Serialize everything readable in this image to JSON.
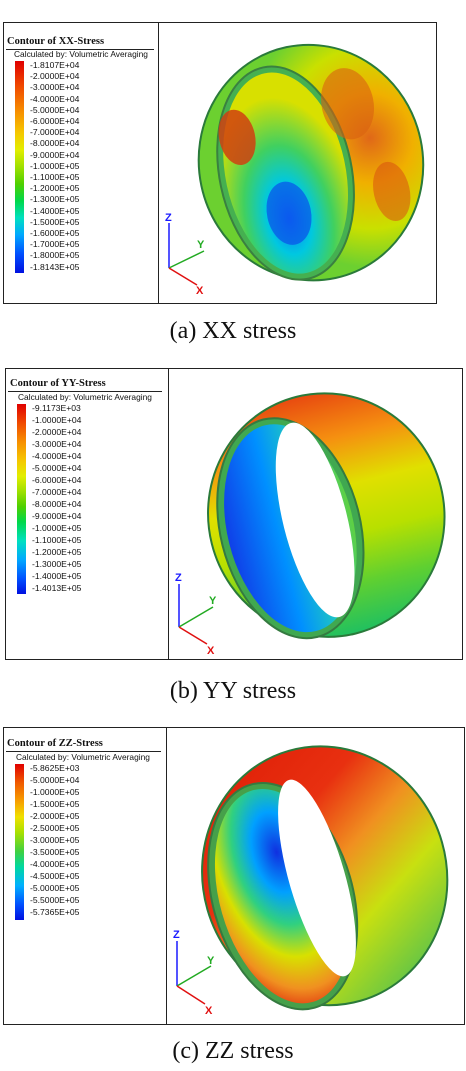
{
  "panels": [
    {
      "id": "xx",
      "title": "Contour of XX-Stress",
      "subtitle": "Calculated by: Volumetric Averaging",
      "levels": [
        "-1.8107E+04",
        "-2.0000E+04",
        "-3.0000E+04",
        "-4.0000E+04",
        "-5.0000E+04",
        "-6.0000E+04",
        "-7.0000E+04",
        "-8.0000E+04",
        "-9.0000E+04",
        "-1.0000E+05",
        "-1.1000E+05",
        "-1.2000E+05",
        "-1.3000E+05",
        "-1.4000E+05",
        "-1.5000E+05",
        "-1.6000E+05",
        "-1.7000E+05",
        "-1.8000E+05",
        "-1.8143E+05"
      ],
      "axes": {
        "z": "Z",
        "y": "Y",
        "x": "X"
      },
      "caption": "(a) XX stress"
    },
    {
      "id": "yy",
      "title": "Contour of YY-Stress",
      "subtitle": "Calculated by: Volumetric Averaging",
      "levels": [
        "-9.1173E+03",
        "-1.0000E+04",
        "-2.0000E+04",
        "-3.0000E+04",
        "-4.0000E+04",
        "-5.0000E+04",
        "-6.0000E+04",
        "-7.0000E+04",
        "-8.0000E+04",
        "-9.0000E+04",
        "-1.0000E+05",
        "-1.1000E+05",
        "-1.2000E+05",
        "-1.3000E+05",
        "-1.4000E+05",
        "-1.4013E+05"
      ],
      "axes": {
        "z": "Z",
        "y": "Y",
        "x": "X"
      },
      "caption": "(b) YY stress"
    },
    {
      "id": "zz",
      "title": "Contour of ZZ-Stress",
      "subtitle": "Calculated by: Volumetric Averaging",
      "levels": [
        "-5.8625E+03",
        "-5.0000E+04",
        "-1.0000E+05",
        "-1.5000E+05",
        "-2.0000E+05",
        "-2.5000E+05",
        "-3.0000E+05",
        "-3.5000E+05",
        "-4.0000E+05",
        "-4.5000E+05",
        "-5.0000E+05",
        "-5.5000E+05",
        "-5.7365E+05"
      ],
      "axes": {
        "z": "Z",
        "y": "Y",
        "x": "X"
      },
      "caption": "(c) ZZ stress"
    }
  ],
  "colors": {
    "axis_z": "#1a1aff",
    "axis_y": "#22aa22",
    "axis_x": "#e01010",
    "frame": "#222222"
  }
}
